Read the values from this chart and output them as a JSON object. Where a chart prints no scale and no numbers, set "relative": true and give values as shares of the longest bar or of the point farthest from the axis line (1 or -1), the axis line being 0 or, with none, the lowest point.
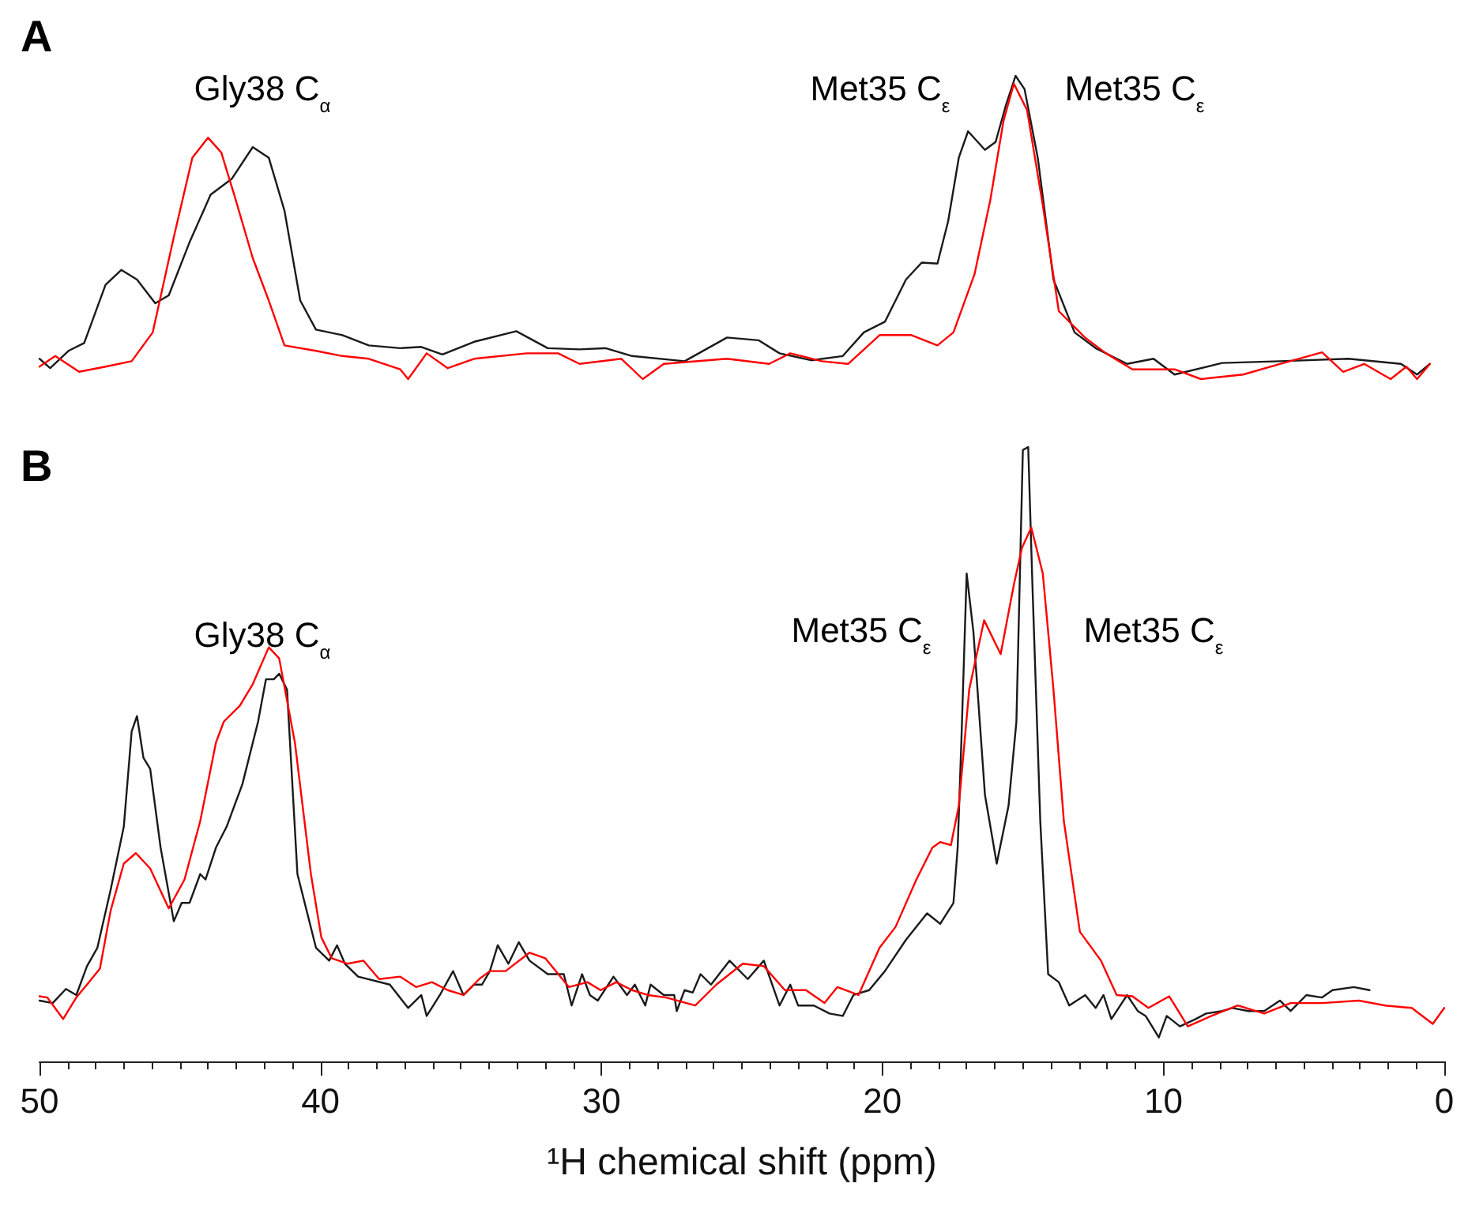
{
  "chart_data": [
    {
      "type": "line",
      "title": "A",
      "relative": true,
      "xlim": [
        50,
        0
      ],
      "tick_labels": false,
      "marker": "none",
      "line_style": "solid",
      "annotations": [
        "Gly38 C$_{α}$",
        "Met35 C$_{ε}$",
        "Met35 C$_{ε}$"
      ],
      "series": [
        {
          "color": "#1a1a1a",
          "x": [
            50.0,
            49.62,
            48.97,
            48.41,
            47.65,
            47.09,
            46.53,
            45.88,
            45.4,
            44.66,
            43.91,
            43.16,
            42.41,
            41.84,
            41.28,
            40.72,
            40.16,
            39.22,
            38.28,
            37.16,
            36.41,
            35.66,
            34.53,
            33.03,
            31.91,
            30.78,
            29.85,
            28.91,
            27.04,
            25.53,
            24.41,
            23.66,
            22.54,
            21.41,
            20.66,
            19.91,
            19.16,
            18.6,
            18.04,
            17.66,
            17.28,
            16.95,
            16.35,
            15.97,
            15.6,
            15.26,
            14.94,
            14.47,
            13.91,
            13.16,
            12.41,
            11.29,
            10.35,
            9.6,
            7.91,
            5.85,
            3.41,
            1.54,
            0.97,
            0.51
          ],
          "values": [
            0.067,
            0.036,
            0.093,
            0.119,
            0.311,
            0.36,
            0.328,
            0.25,
            0.276,
            0.451,
            0.608,
            0.66,
            0.765,
            0.73,
            0.555,
            0.259,
            0.163,
            0.145,
            0.111,
            0.102,
            0.106,
            0.081,
            0.123,
            0.158,
            0.102,
            0.098,
            0.102,
            0.076,
            0.059,
            0.137,
            0.128,
            0.085,
            0.062,
            0.076,
            0.154,
            0.189,
            0.328,
            0.384,
            0.381,
            0.52,
            0.73,
            0.817,
            0.756,
            0.782,
            0.904,
            1.0,
            0.956,
            0.73,
            0.328,
            0.154,
            0.102,
            0.05,
            0.067,
            0.015,
            0.053,
            0.059,
            0.067,
            0.05,
            0.015,
            0.05
          ]
        },
        {
          "color": "#ff0000",
          "x": [
            50.0,
            49.44,
            48.59,
            47.65,
            46.72,
            45.97,
            45.22,
            44.56,
            44.0,
            43.53,
            43.07,
            42.41,
            41.84,
            41.28,
            40.16,
            39.22,
            38.28,
            37.16,
            36.88,
            36.22,
            35.47,
            34.53,
            32.66,
            31.54,
            30.78,
            29.29,
            28.53,
            27.78,
            25.53,
            24.03,
            23.28,
            22.16,
            21.22,
            20.1,
            18.97,
            18.04,
            17.47,
            16.72,
            16.16,
            15.69,
            15.32,
            14.85,
            14.29,
            13.72,
            12.79,
            12.04,
            11.1,
            9.6,
            8.66,
            7.16,
            5.85,
            4.35,
            3.6,
            2.85,
            1.91,
            1.35,
            0.97,
            0.51
          ],
          "values": [
            0.041,
            0.076,
            0.024,
            0.041,
            0.059,
            0.154,
            0.468,
            0.73,
            0.796,
            0.747,
            0.608,
            0.399,
            0.259,
            0.111,
            0.093,
            0.076,
            0.067,
            0.032,
            0.0,
            0.085,
            0.036,
            0.067,
            0.085,
            0.085,
            0.05,
            0.067,
            0.0,
            0.05,
            0.067,
            0.05,
            0.085,
            0.059,
            0.05,
            0.145,
            0.145,
            0.111,
            0.154,
            0.346,
            0.59,
            0.851,
            0.974,
            0.887,
            0.573,
            0.224,
            0.137,
            0.085,
            0.032,
            0.032,
            0.0,
            0.015,
            0.05,
            0.088,
            0.024,
            0.05,
            0.0,
            0.041,
            0.0,
            0.05
          ]
        }
      ]
    },
    {
      "type": "line",
      "title": "B",
      "relative": true,
      "xlim": [
        50,
        0
      ],
      "xlabel": "¹H chemical shift (ppm)",
      "marker": "none",
      "line_style": "solid",
      "xticks": [
        50,
        {
          "value": 49,
          "label": null
        },
        {
          "value": 48,
          "label": null
        },
        {
          "value": 47,
          "label": null
        },
        {
          "value": 46,
          "label": null
        },
        {
          "value": 45,
          "label": null
        },
        {
          "value": 44,
          "label": null
        },
        {
          "value": 43,
          "label": null
        },
        {
          "value": 42,
          "label": null
        },
        {
          "value": 41,
          "label": null
        },
        40,
        {
          "value": 39,
          "label": null
        },
        {
          "value": 38,
          "label": null
        },
        {
          "value": 37,
          "label": null
        },
        {
          "value": 36,
          "label": null
        },
        {
          "value": 35,
          "label": null
        },
        {
          "value": 34,
          "label": null
        },
        {
          "value": 33,
          "label": null
        },
        {
          "value": 32,
          "label": null
        },
        {
          "value": 31,
          "label": null
        },
        30,
        {
          "value": 29,
          "label": null
        },
        {
          "value": 28,
          "label": null
        },
        {
          "value": 27,
          "label": null
        },
        {
          "value": 26,
          "label": null
        },
        {
          "value": 25,
          "label": null
        },
        {
          "value": 24,
          "label": null
        },
        {
          "value": 23,
          "label": null
        },
        {
          "value": 22,
          "label": null
        },
        {
          "value": 21,
          "label": null
        },
        20,
        {
          "value": 19,
          "label": null
        },
        {
          "value": 18,
          "label": null
        },
        {
          "value": 17,
          "label": null
        },
        {
          "value": 16,
          "label": null
        },
        {
          "value": 15,
          "label": null
        },
        {
          "value": 14,
          "label": null
        },
        {
          "value": 13,
          "label": null
        },
        {
          "value": 12,
          "label": null
        },
        {
          "value": 11,
          "label": null
        },
        10,
        {
          "value": 9,
          "label": null
        },
        {
          "value": 8,
          "label": null
        },
        {
          "value": 7,
          "label": null
        },
        {
          "value": 6,
          "label": null
        },
        {
          "value": 5,
          "label": null
        },
        {
          "value": 4,
          "label": null
        },
        {
          "value": 3,
          "label": null
        },
        {
          "value": 2,
          "label": null
        },
        {
          "value": 1,
          "label": null
        },
        0
      ],
      "annotations": [
        "Gly38 C$_{α}$",
        "Met35 C$_{ε}$",
        "Met35 C$_{ε}$"
      ],
      "series": [
        {
          "color": "#1a1a1a",
          "x": [
            50.0,
            49.53,
            49.06,
            48.69,
            48.31,
            47.94,
            47.47,
            47.0,
            46.72,
            46.53,
            46.3,
            46.06,
            45.69,
            45.22,
            44.94,
            44.66,
            44.28,
            44.09,
            43.72,
            43.34,
            42.78,
            42.22,
            41.94,
            41.66,
            41.47,
            41.19,
            40.82,
            40.16,
            39.69,
            39.41,
            39.13,
            38.66,
            37.53,
            36.88,
            36.41,
            36.22,
            35.75,
            35.28,
            34.91,
            34.53,
            34.25,
            33.97,
            33.69,
            33.31,
            32.94,
            32.56,
            31.91,
            31.34,
            31.06,
            30.69,
            30.41,
            30.13,
            29.57,
            29.09,
            28.81,
            28.44,
            28.25,
            27.78,
            27.41,
            27.32,
            27.04,
            26.75,
            26.47,
            26.1,
            25.44,
            24.79,
            24.22,
            23.66,
            23.28,
            23.0,
            22.44,
            21.88,
            21.41,
            21.03,
            20.47,
            19.91,
            19.16,
            18.41,
            17.94,
            17.47,
            17.32,
            17.19,
            17.0,
            16.76,
            16.35,
            15.93,
            15.51,
            15.23,
            15.0,
            14.81,
            14.66,
            14.38,
            14.1,
            13.72,
            13.35,
            12.78,
            12.41,
            12.13,
            11.85,
            11.29,
            10.91,
            10.63,
            10.16,
            9.88,
            9.41,
            8.85,
            8.48,
            7.91,
            7.54,
            6.97,
            6.41,
            5.85,
            5.47,
            4.91,
            4.35,
            3.98,
            3.22,
            2.66
          ],
          "values": [
            0.099,
            0.095,
            0.118,
            0.108,
            0.155,
            0.185,
            0.279,
            0.382,
            0.537,
            0.562,
            0.494,
            0.476,
            0.348,
            0.228,
            0.258,
            0.258,
            0.305,
            0.296,
            0.348,
            0.382,
            0.451,
            0.553,
            0.622,
            0.622,
            0.631,
            0.605,
            0.305,
            0.185,
            0.164,
            0.189,
            0.159,
            0.138,
            0.125,
            0.087,
            0.108,
            0.074,
            0.108,
            0.147,
            0.108,
            0.125,
            0.125,
            0.147,
            0.189,
            0.159,
            0.194,
            0.164,
            0.142,
            0.142,
            0.091,
            0.142,
            0.108,
            0.099,
            0.138,
            0.108,
            0.125,
            0.091,
            0.125,
            0.108,
            0.108,
            0.082,
            0.116,
            0.112,
            0.142,
            0.125,
            0.164,
            0.134,
            0.164,
            0.091,
            0.125,
            0.091,
            0.091,
            0.078,
            0.074,
            0.108,
            0.116,
            0.147,
            0.198,
            0.241,
            0.224,
            0.258,
            0.348,
            0.519,
            0.794,
            0.699,
            0.434,
            0.322,
            0.416,
            0.553,
            0.995,
            1.0,
            0.776,
            0.391,
            0.142,
            0.129,
            0.091,
            0.108,
            0.087,
            0.108,
            0.069,
            0.108,
            0.082,
            0.074,
            0.039,
            0.074,
            0.057,
            0.069,
            0.078,
            0.082,
            0.087,
            0.082,
            0.082,
            0.099,
            0.082,
            0.108,
            0.104,
            0.116,
            0.121,
            0.116
          ]
        },
        {
          "color": "#ff0000",
          "x": [
            50.0,
            49.72,
            49.16,
            48.69,
            48.31,
            47.85,
            47.47,
            47.0,
            46.57,
            46.06,
            45.4,
            44.84,
            44.28,
            43.72,
            43.44,
            42.87,
            42.41,
            41.84,
            41.47,
            40.91,
            40.34,
            39.97,
            39.6,
            39.03,
            38.47,
            37.91,
            37.16,
            36.6,
            36.03,
            35.47,
            34.91,
            34.35,
            33.97,
            33.41,
            32.56,
            32.0,
            31.16,
            30.5,
            30.03,
            29.47,
            28.91,
            28.35,
            27.69,
            26.66,
            25.91,
            24.97,
            24.22,
            23.47,
            22.72,
            22.06,
            21.6,
            20.85,
            20.1,
            19.53,
            18.79,
            18.22,
            17.94,
            17.56,
            17.28,
            16.91,
            16.38,
            15.79,
            15.32,
            15.03,
            14.7,
            14.29,
            13.91,
            13.54,
            12.97,
            12.22,
            11.66,
            11.1,
            10.53,
            9.79,
            9.13,
            8.29,
            7.35,
            6.41,
            5.47,
            4.35,
            3.04,
            2.1,
            1.16,
            0.41,
            0.0
          ],
          "values": [
            0.106,
            0.104,
            0.069,
            0.104,
            0.125,
            0.151,
            0.245,
            0.322,
            0.339,
            0.314,
            0.249,
            0.296,
            0.391,
            0.519,
            0.553,
            0.579,
            0.614,
            0.674,
            0.656,
            0.519,
            0.305,
            0.202,
            0.168,
            0.159,
            0.164,
            0.134,
            0.138,
            0.121,
            0.129,
            0.116,
            0.108,
            0.134,
            0.147,
            0.147,
            0.177,
            0.168,
            0.121,
            0.129,
            0.116,
            0.129,
            0.116,
            0.108,
            0.104,
            0.091,
            0.125,
            0.159,
            0.155,
            0.116,
            0.116,
            0.095,
            0.121,
            0.108,
            0.185,
            0.219,
            0.296,
            0.348,
            0.357,
            0.352,
            0.416,
            0.605,
            0.718,
            0.663,
            0.776,
            0.836,
            0.869,
            0.794,
            0.605,
            0.391,
            0.211,
            0.164,
            0.108,
            0.106,
            0.087,
            0.106,
            0.057,
            0.074,
            0.091,
            0.078,
            0.095,
            0.095,
            0.099,
            0.091,
            0.087,
            0.061,
            0.087
          ]
        }
      ]
    }
  ]
}
